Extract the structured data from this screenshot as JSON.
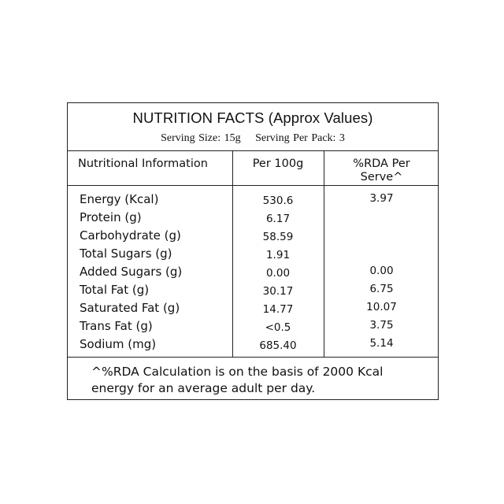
{
  "label": {
    "title": "NUTRITION FACTS (Approx Values)",
    "serving_size": "Serving Size: 15g",
    "serving_per_pack": "Serving Per Pack: 3",
    "headers": {
      "info": "Nutritional Information",
      "per100": "Per 100g",
      "rda_line1": "%RDA Per",
      "rda_line2": "Serve^"
    },
    "rows": [
      {
        "name": "Energy (Kcal)",
        "per100": "530.6",
        "rda": "3.97"
      },
      {
        "name": "Protein (g)",
        "per100": "6.17",
        "rda": ""
      },
      {
        "name": "Carbohydrate (g)",
        "per100": "58.59",
        "rda": ""
      },
      {
        "name": "Total Sugars (g)",
        "per100": "1.91",
        "rda": ""
      },
      {
        "name": "Added Sugars (g)",
        "per100": "0.00",
        "rda": "0.00"
      },
      {
        "name": "Total Fat (g)",
        "per100": "30.17",
        "rda": "6.75"
      },
      {
        "name": "Saturated Fat (g)",
        "per100": "14.77",
        "rda": "10.07"
      },
      {
        "name": "Trans Fat (g)",
        "per100": "<0.5",
        "rda": "3.75"
      },
      {
        "name": "Sodium (mg)",
        "per100": "685.40",
        "rda": "5.14"
      }
    ],
    "footnote_line1": "^%RDA Calculation is on the basis of 2000 Kcal",
    "footnote_line2": "energy for an average adult per day."
  }
}
